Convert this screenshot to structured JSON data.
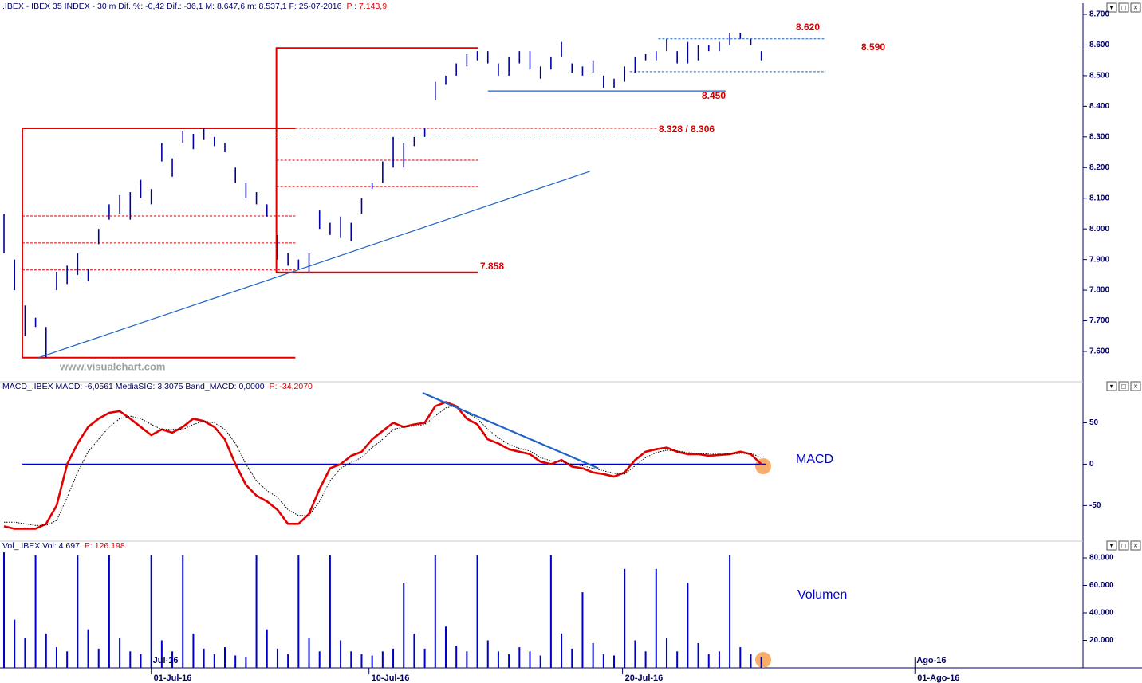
{
  "chart_data": [
    {
      "type": "hilo",
      "title": ".IBEX - IBEX 35 INDEX - 30 m  Dif. %: -0,42  Dif.: -36,1  M: 8.647,6  m: 8.537,1  F: 25-07-2016",
      "last_value_label": "P : 7.143,9",
      "watermark": "www.visualchart.com",
      "color": "#0000a0",
      "xlim": [
        -0.38,
        102.35
      ],
      "ylim": [
        7509,
        8726
      ],
      "yticks": [
        {
          "value": 7600,
          "label": "7.600"
        },
        {
          "value": 7700,
          "label": "7.700"
        },
        {
          "value": 7800,
          "label": "7.800"
        },
        {
          "value": 7900,
          "label": "7.900"
        },
        {
          "value": 8000,
          "label": "8.000"
        },
        {
          "value": 8100,
          "label": "8.100"
        },
        {
          "value": 8200,
          "label": "8.200"
        },
        {
          "value": 8300,
          "label": "8.300"
        },
        {
          "value": 8400,
          "label": "8.400"
        },
        {
          "value": 8500,
          "label": "8.500"
        },
        {
          "value": 8600,
          "label": "8.600"
        },
        {
          "value": 8700,
          "label": "8.700"
        }
      ],
      "high": [
        8050,
        7900,
        7750,
        7710,
        7680,
        7860,
        7880,
        7920,
        7870,
        8000,
        8080,
        8110,
        8120,
        8160,
        8130,
        8280,
        8230,
        8320,
        8310,
        8330,
        8300,
        8280,
        8200,
        8150,
        8120,
        8080,
        7980,
        7920,
        7900,
        7920,
        8060,
        8020,
        8040,
        8020,
        8100,
        8150,
        8220,
        8300,
        8280,
        8300,
        8330,
        8480,
        8500,
        8540,
        8570,
        8580,
        8580,
        8540,
        8560,
        8580,
        8580,
        8530,
        8560,
        8610,
        8540,
        8530,
        8550,
        8500,
        8490,
        8530,
        8560,
        8570,
        8580,
        8620,
        8580,
        8610,
        8600,
        8600,
        8610,
        8640,
        8640,
        8620,
        8580
      ],
      "low": [
        7920,
        7800,
        7650,
        7680,
        7580,
        7800,
        7820,
        7850,
        7830,
        7950,
        8030,
        8050,
        8030,
        8100,
        8080,
        8220,
        8170,
        8280,
        8260,
        8290,
        8270,
        8250,
        8150,
        8100,
        8080,
        8040,
        7900,
        7880,
        7870,
        7860,
        8000,
        7980,
        7970,
        7960,
        8050,
        8130,
        8150,
        8200,
        8200,
        8270,
        8300,
        8420,
        8470,
        8500,
        8530,
        8550,
        8540,
        8500,
        8500,
        8540,
        8520,
        8490,
        8520,
        8560,
        8510,
        8500,
        8510,
        8460,
        8460,
        8480,
        8510,
        8550,
        8550,
        8580,
        8540,
        8540,
        8550,
        8580,
        8580,
        8600,
        8620,
        8600,
        8550
      ],
      "boxes": [
        {
          "from": 1.74,
          "to": 27.7,
          "low": 7580,
          "high": 8328,
          "levels": [
            8042,
            7954,
            7866
          ],
          "color": "#e00000"
        },
        {
          "from": 25.9,
          "to": 45.1,
          "low": 7858,
          "high": 8590,
          "levels": [
            8306,
            8224,
            8138
          ],
          "color": "#e00000"
        }
      ],
      "levels": [
        {
          "value": 8328,
          "from": 27.7,
          "to": 62.2,
          "style": "dashed",
          "color": "#e00000"
        },
        {
          "value": 8306,
          "from": 45.1,
          "to": 62.2,
          "style": "dashed",
          "color": "#e00000"
        },
        {
          "value": 8620,
          "from": 62.2,
          "to": 78.1,
          "style": "dashed",
          "color": "#1e64c8"
        },
        {
          "value": 8513,
          "from": 59.5,
          "to": 78.1,
          "style": "dashed",
          "color": "#1e64c8"
        },
        {
          "value": 8450,
          "from": 46.0,
          "to": 68.6,
          "style": "solid",
          "color": "#1e64c8"
        }
      ],
      "trendline": {
        "x": [
          3.3,
          55.7
        ],
        "y": [
          7580,
          8188
        ],
        "color": "#1e64c8"
      },
      "annotations": [
        "8.620",
        "8.590",
        "8.450",
        "8.328 / 8.306",
        "7.858"
      ]
    },
    {
      "type": "line",
      "title": "MACD_.IBEX MACD: -6,0561  MediaSIG: 3,3075  Band_MACD: 0,0000",
      "last_value_label": "P: -34,2070",
      "label": "MACD",
      "xlim": [
        -0.38,
        102.35
      ],
      "ylim": [
        -91,
        87
      ],
      "yticks": [
        -50,
        0,
        50
      ],
      "series": [
        {
          "color": "#e00000",
          "style": "thick",
          "values": [
            -75,
            -78,
            -78,
            -78,
            -72,
            -50,
            0,
            25,
            45,
            55,
            62,
            64,
            55,
            45,
            35,
            42,
            38,
            45,
            55,
            52,
            45,
            30,
            0,
            -25,
            -38,
            -45,
            -55,
            -72,
            -72,
            -60,
            -30,
            -5,
            0,
            10,
            15,
            30,
            40,
            50,
            45,
            48,
            50,
            70,
            75,
            70,
            55,
            48,
            30,
            25,
            18,
            15,
            12,
            3,
            0,
            5,
            -3,
            -5,
            -10,
            -12,
            -15,
            -10,
            5,
            15,
            18,
            20,
            15,
            12,
            12,
            10,
            11,
            12,
            15,
            12,
            0
          ]
        },
        {
          "color": "#000000",
          "style": "dotted",
          "values": [
            -70,
            -70,
            -72,
            -74,
            -74,
            -68,
            -40,
            -10,
            15,
            30,
            45,
            55,
            58,
            55,
            48,
            42,
            42,
            42,
            48,
            52,
            50,
            42,
            25,
            0,
            -20,
            -32,
            -40,
            -55,
            -62,
            -62,
            -45,
            -20,
            -5,
            2,
            8,
            20,
            30,
            42,
            45,
            46,
            48,
            58,
            68,
            70,
            62,
            55,
            42,
            32,
            24,
            19,
            16,
            8,
            4,
            3,
            0,
            -2,
            -5,
            -8,
            -11,
            -12,
            -2,
            8,
            14,
            17,
            16,
            14,
            13,
            12,
            12,
            12,
            13,
            13,
            8
          ]
        }
      ],
      "levels": [
        {
          "value": 0,
          "from": 1.74,
          "to": 72.4,
          "style": "solid",
          "color": "#0000cc"
        }
      ],
      "trendline": {
        "x": [
          39.8,
          56.5
        ],
        "y": [
          86,
          -5
        ],
        "color": "#1e64c8"
      }
    },
    {
      "type": "bar",
      "title": "Vol_.IBEX Vol: 4.697",
      "last_value_label": "P: 126.198",
      "label": "Volumen",
      "color": "#0000cc",
      "xlim": [
        -0.38,
        102.35
      ],
      "ylim": [
        0,
        85800
      ],
      "yticks": [
        {
          "value": 20000,
          "label": "20.000"
        },
        {
          "value": 40000,
          "label": "40.000"
        },
        {
          "value": 60000,
          "label": "60.000"
        },
        {
          "value": 80000,
          "label": "80.000"
        }
      ],
      "values": [
        84000,
        35000,
        22000,
        82000,
        25000,
        15000,
        12000,
        82000,
        28000,
        14000,
        82000,
        22000,
        12000,
        10000,
        82000,
        20000,
        12000,
        82000,
        25000,
        14000,
        10000,
        15000,
        9000,
        8000,
        82000,
        28000,
        14000,
        10000,
        82000,
        22000,
        12000,
        82000,
        20000,
        12000,
        10000,
        9000,
        12000,
        14000,
        62000,
        25000,
        14000,
        82000,
        30000,
        16000,
        12000,
        82000,
        20000,
        12000,
        10000,
        15000,
        12000,
        9000,
        82000,
        25000,
        14000,
        55000,
        18000,
        10000,
        9000,
        72000,
        20000,
        12000,
        72000,
        22000,
        12000,
        62000,
        18000,
        10000,
        12000,
        82000,
        15000,
        10000,
        8000
      ],
      "xticks": [
        {
          "value": 14.0,
          "label": "01-Jul-16"
        },
        {
          "value": 34.7,
          "label": "10-Jul-16"
        },
        {
          "value": 58.8,
          "label": "20-Jul-16"
        },
        {
          "value": 86.6,
          "label": "01-Ago-16"
        }
      ],
      "month_ticks": [
        {
          "value": 14.0,
          "label": "Jul-16"
        },
        {
          "value": 86.6,
          "label": "Ago-16"
        }
      ]
    }
  ]
}
